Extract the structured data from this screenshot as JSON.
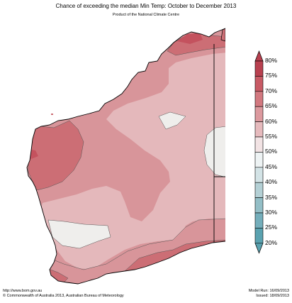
{
  "header": {
    "title": "Chance of exceeding the median Min Temp: October to December 2013",
    "subtitle": "Product of the National Climate Centre"
  },
  "legend": {
    "labels": [
      "80%",
      "75%",
      "70%",
      "65%",
      "60%",
      "55%",
      "50%",
      "45%",
      "40%",
      "35%",
      "30%",
      "25%",
      "20%"
    ],
    "colors": [
      "#b8404f",
      "#c85a65",
      "#d2787f",
      "#dc999e",
      "#e6babd",
      "#f2e3e4",
      "#ffffff",
      "#eef3f4",
      "#d3e3e6",
      "#b4d0d5",
      "#93bec6",
      "#74aebb",
      "#5aa2b0"
    ],
    "top_triangle_color": "#b8404f",
    "bottom_triangle_color": "#5aa2b0"
  },
  "map_colors": {
    "c70": "#cc6e75",
    "c65": "#d8959a",
    "c60": "#e4b8bb",
    "c55": "#efeeec",
    "c75": "#c4525e"
  },
  "footer": {
    "url": "http://www.bom.gov.au",
    "copyright": "© Commonwealth of Australia 2013, Australian Bureau of Meteorology",
    "model_run": "Model Run: 16/09/2013",
    "issued": "Issued: 18/09/2013"
  }
}
